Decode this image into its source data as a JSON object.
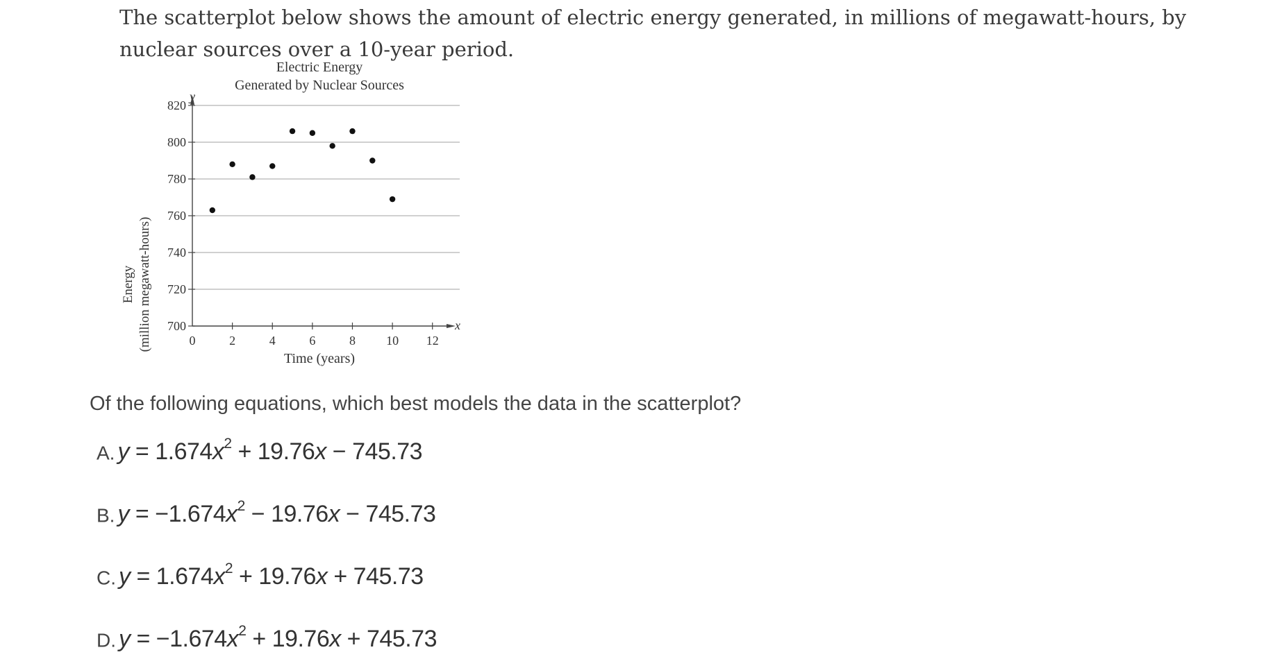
{
  "intro_text": "The scatterplot below shows the amount of electric energy generated, in millions of megawatt-hours, by nuclear sources over a 10-year period.",
  "chart_data": {
    "type": "scatter",
    "title_line1": "Electric Energy",
    "title_line2": "Generated by Nuclear Sources",
    "xlabel": "Time (years)",
    "ylabel_line1": "Energy",
    "ylabel_line2": "(million megawatt-hours)",
    "x_axis_letter": "x",
    "y_axis_letter": "y",
    "xlim": [
      0,
      13
    ],
    "ylim": [
      700,
      825
    ],
    "x_ticks": [
      0,
      2,
      4,
      6,
      8,
      10,
      12
    ],
    "y_ticks": [
      700,
      720,
      740,
      760,
      780,
      800,
      820
    ],
    "grid": "horizontal",
    "points": [
      {
        "x": 1,
        "y": 763
      },
      {
        "x": 2,
        "y": 788
      },
      {
        "x": 3,
        "y": 781
      },
      {
        "x": 4,
        "y": 787
      },
      {
        "x": 5,
        "y": 806
      },
      {
        "x": 6,
        "y": 805
      },
      {
        "x": 7,
        "y": 798
      },
      {
        "x": 8,
        "y": 806
      },
      {
        "x": 9,
        "y": 790
      },
      {
        "x": 10,
        "y": 769
      }
    ]
  },
  "question_text": "Of the following equations, which best models the data in the scatterplot?",
  "options": [
    {
      "letter": "A.",
      "a": "1.674",
      "b": "19.76",
      "c": "745.73",
      "eq_prefix": " = ",
      "mid1": " + ",
      "mid2": " − "
    },
    {
      "letter": "B.",
      "a": "−1.674",
      "b": "19.76",
      "c": "745.73",
      "eq_prefix": " = ",
      "mid1": " − ",
      "mid2": " − "
    },
    {
      "letter": "C.",
      "a": "1.674",
      "b": "19.76",
      "c": "745.73",
      "eq_prefix": " = ",
      "mid1": " + ",
      "mid2": " + "
    },
    {
      "letter": "D.",
      "a": "−1.674",
      "b": "19.76",
      "c": "745.73",
      "eq_prefix": " = ",
      "mid1": " + ",
      "mid2": " + "
    }
  ]
}
